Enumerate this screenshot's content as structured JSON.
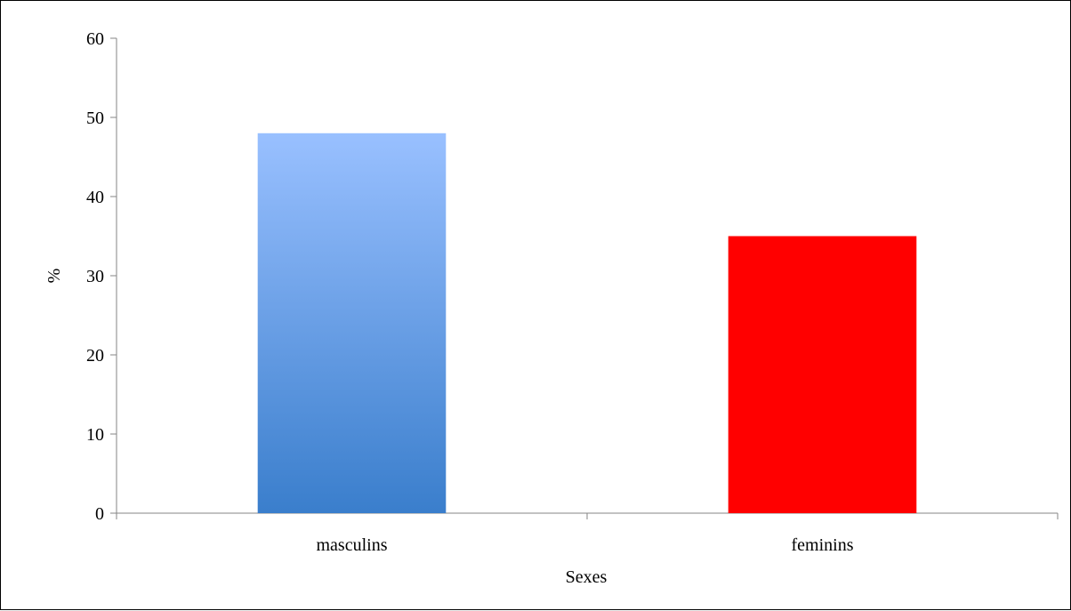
{
  "chart_data": {
    "type": "bar",
    "categories": [
      "masculins",
      "feminins"
    ],
    "values": [
      48,
      35
    ],
    "title": "",
    "xlabel": "Sexes",
    "ylabel": "%",
    "ylim": [
      0,
      60
    ],
    "yticks": [
      "0",
      "10",
      "20",
      "30",
      "40",
      "50",
      "60"
    ],
    "grid": false,
    "legend": "none",
    "colors": {
      "masculins_top": "#99C0FF",
      "masculins_bottom": "#3A7ECC",
      "feminins": "#FF0000",
      "axis": "#868686"
    }
  }
}
